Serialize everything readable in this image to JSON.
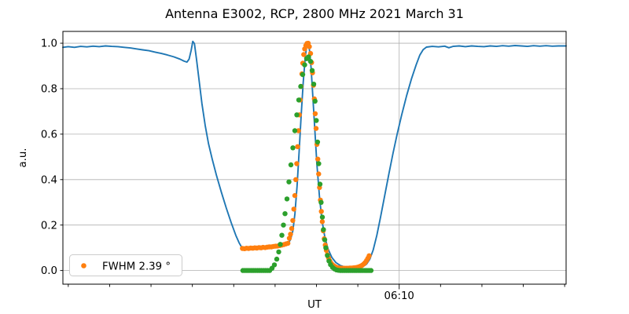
{
  "title": "Antenna E3002, RCP, 2800 MHz 2021 March 31",
  "colors": {
    "line": "#1f77b4",
    "scan_dots": "#ff7f0e",
    "fit_dots": "#2ca02c",
    "grid": "#b0b0b0",
    "axis": "#000000",
    "legend_border": "#cccccc",
    "background": "#ffffff"
  },
  "legend": {
    "label": "FWHM 2.39 °",
    "marker_color": "#ff7f0e"
  },
  "chart_data": {
    "type": "line",
    "title": "Antenna E3002, RCP, 2800 MHz 2021 March 31",
    "xlabel": "UT",
    "ylabel": "a.u.",
    "x_unit": "minutes since 00:00 UT",
    "xlim_minutes": [
      288.7,
      410.35
    ],
    "ylim": [
      -0.06,
      1.052
    ],
    "x_ticks_minutes": [
      290,
      300,
      310,
      320,
      330,
      340,
      350,
      360,
      370,
      380,
      390,
      400,
      410
    ],
    "x_major_tick": {
      "minutes": 370,
      "label": "06:10"
    },
    "y_ticks": [
      0.0,
      0.2,
      0.4,
      0.6,
      0.8,
      1.0
    ],
    "grid": {
      "horizontal": "at every y tick",
      "vertical": "only at labeled x tick 06:10"
    },
    "legend": {
      "label": "FWHM 2.39 °",
      "location": "lower left"
    },
    "series": [
      {
        "name": "signal-line",
        "type": "line",
        "color": "#1f77b4",
        "points": [
          [
            288.7,
            0.982
          ],
          [
            290.0,
            0.985
          ],
          [
            291.5,
            0.982
          ],
          [
            293.0,
            0.986
          ],
          [
            294.5,
            0.984
          ],
          [
            296.0,
            0.987
          ],
          [
            297.5,
            0.985
          ],
          [
            299.0,
            0.988
          ],
          [
            300.5,
            0.986
          ],
          [
            302.0,
            0.985
          ],
          [
            303.5,
            0.982
          ],
          [
            305.0,
            0.979
          ],
          [
            306.5,
            0.975
          ],
          [
            308.0,
            0.971
          ],
          [
            309.5,
            0.967
          ],
          [
            311.0,
            0.961
          ],
          [
            312.5,
            0.955
          ],
          [
            314.0,
            0.948
          ],
          [
            315.5,
            0.94
          ],
          [
            317.0,
            0.93
          ],
          [
            318.0,
            0.921
          ],
          [
            318.7,
            0.917
          ],
          [
            319.2,
            0.93
          ],
          [
            319.7,
            0.968
          ],
          [
            320.1,
            1.008
          ],
          [
            320.5,
            0.998
          ],
          [
            321.0,
            0.93
          ],
          [
            321.6,
            0.84
          ],
          [
            322.3,
            0.735
          ],
          [
            323.1,
            0.638
          ],
          [
            323.9,
            0.558
          ],
          [
            324.8,
            0.49
          ],
          [
            325.8,
            0.42
          ],
          [
            327.0,
            0.345
          ],
          [
            328.2,
            0.275
          ],
          [
            329.4,
            0.21
          ],
          [
            330.5,
            0.155
          ],
          [
            331.3,
            0.122
          ],
          [
            332.0,
            0.1
          ],
          [
            333.0,
            0.095
          ],
          [
            334.5,
            0.097
          ],
          [
            336.0,
            0.099
          ],
          [
            337.5,
            0.1
          ],
          [
            339.0,
            0.102
          ],
          [
            340.5,
            0.106
          ],
          [
            342.0,
            0.111
          ],
          [
            343.0,
            0.118
          ],
          [
            343.7,
            0.135
          ],
          [
            344.3,
            0.175
          ],
          [
            344.8,
            0.25
          ],
          [
            345.3,
            0.37
          ],
          [
            345.8,
            0.52
          ],
          [
            346.3,
            0.68
          ],
          [
            346.8,
            0.83
          ],
          [
            347.3,
            0.94
          ],
          [
            347.7,
            0.995
          ],
          [
            348.0,
            1.0
          ],
          [
            348.3,
            0.97
          ],
          [
            348.7,
            0.89
          ],
          [
            349.1,
            0.77
          ],
          [
            349.6,
            0.62
          ],
          [
            350.1,
            0.47
          ],
          [
            350.7,
            0.33
          ],
          [
            351.3,
            0.225
          ],
          [
            352.0,
            0.15
          ],
          [
            352.8,
            0.095
          ],
          [
            353.7,
            0.058
          ],
          [
            354.7,
            0.035
          ],
          [
            355.8,
            0.022
          ],
          [
            357.0,
            0.015
          ],
          [
            358.5,
            0.012
          ],
          [
            360.0,
            0.013
          ],
          [
            361.2,
            0.017
          ],
          [
            362.1,
            0.028
          ],
          [
            362.9,
            0.05
          ],
          [
            363.7,
            0.09
          ],
          [
            364.6,
            0.155
          ],
          [
            365.5,
            0.235
          ],
          [
            366.5,
            0.33
          ],
          [
            367.5,
            0.425
          ],
          [
            368.5,
            0.515
          ],
          [
            369.5,
            0.6
          ],
          [
            370.6,
            0.685
          ],
          [
            371.8,
            0.77
          ],
          [
            373.0,
            0.845
          ],
          [
            374.1,
            0.905
          ],
          [
            375.0,
            0.948
          ],
          [
            375.8,
            0.972
          ],
          [
            376.6,
            0.983
          ],
          [
            378.0,
            0.986
          ],
          [
            379.5,
            0.984
          ],
          [
            381.0,
            0.987
          ],
          [
            382.0,
            0.98
          ],
          [
            383.0,
            0.986
          ],
          [
            384.5,
            0.988
          ],
          [
            386.0,
            0.985
          ],
          [
            387.5,
            0.988
          ],
          [
            389.0,
            0.986
          ],
          [
            390.5,
            0.985
          ],
          [
            392.0,
            0.988
          ],
          [
            393.5,
            0.986
          ],
          [
            395.0,
            0.989
          ],
          [
            396.5,
            0.987
          ],
          [
            398.0,
            0.99
          ],
          [
            399.5,
            0.988
          ],
          [
            401.0,
            0.986
          ],
          [
            402.5,
            0.989
          ],
          [
            404.0,
            0.987
          ],
          [
            405.5,
            0.989
          ],
          [
            407.0,
            0.987
          ],
          [
            408.5,
            0.988
          ],
          [
            410.35,
            0.988
          ]
        ]
      },
      {
        "name": "scan-dots",
        "type": "scatter",
        "color": "#ff7f0e",
        "legend_label": "FWHM 2.39 °",
        "points": [
          [
            332.1,
            0.097
          ],
          [
            332.6,
            0.096
          ],
          [
            333.1,
            0.098
          ],
          [
            333.6,
            0.097
          ],
          [
            334.1,
            0.099
          ],
          [
            334.6,
            0.098
          ],
          [
            335.1,
            0.1
          ],
          [
            335.6,
            0.099
          ],
          [
            336.1,
            0.101
          ],
          [
            336.6,
            0.1
          ],
          [
            337.1,
            0.102
          ],
          [
            337.6,
            0.101
          ],
          [
            338.1,
            0.103
          ],
          [
            338.6,
            0.104
          ],
          [
            339.1,
            0.104
          ],
          [
            339.6,
            0.106
          ],
          [
            340.1,
            0.107
          ],
          [
            340.6,
            0.108
          ],
          [
            341.1,
            0.11
          ],
          [
            341.6,
            0.112
          ],
          [
            342.1,
            0.114
          ],
          [
            342.6,
            0.117
          ],
          [
            343.1,
            0.12
          ],
          [
            343.45,
            0.142
          ],
          [
            343.73,
            0.16
          ],
          [
            344.02,
            0.185
          ],
          [
            344.28,
            0.22
          ],
          [
            344.53,
            0.27
          ],
          [
            344.78,
            0.33
          ],
          [
            345.0,
            0.4
          ],
          [
            345.23,
            0.47
          ],
          [
            345.44,
            0.545
          ],
          [
            345.65,
            0.615
          ],
          [
            345.86,
            0.685
          ],
          [
            346.07,
            0.75
          ],
          [
            346.28,
            0.81
          ],
          [
            346.49,
            0.865
          ],
          [
            346.7,
            0.912
          ],
          [
            346.92,
            0.95
          ],
          [
            347.15,
            0.975
          ],
          [
            347.44,
            0.99
          ],
          [
            347.72,
            0.999
          ],
          [
            348.01,
            1.0
          ],
          [
            348.29,
            0.985
          ],
          [
            348.58,
            0.955
          ],
          [
            348.82,
            0.915
          ],
          [
            349.05,
            0.87
          ],
          [
            349.28,
            0.815
          ],
          [
            349.49,
            0.755
          ],
          [
            349.7,
            0.69
          ],
          [
            349.91,
            0.625
          ],
          [
            350.12,
            0.555
          ],
          [
            350.33,
            0.49
          ],
          [
            350.54,
            0.425
          ],
          [
            350.75,
            0.365
          ],
          [
            350.96,
            0.31
          ],
          [
            351.18,
            0.26
          ],
          [
            351.41,
            0.215
          ],
          [
            351.64,
            0.175
          ],
          [
            351.89,
            0.14
          ],
          [
            352.13,
            0.112
          ],
          [
            352.38,
            0.089
          ],
          [
            352.65,
            0.07
          ],
          [
            352.93,
            0.055
          ],
          [
            353.22,
            0.043
          ],
          [
            353.52,
            0.033
          ],
          [
            353.84,
            0.026
          ],
          [
            354.17,
            0.021
          ],
          [
            354.51,
            0.017
          ],
          [
            354.85,
            0.014
          ],
          [
            355.23,
            0.012
          ],
          [
            355.61,
            0.011
          ],
          [
            356.03,
            0.01
          ],
          [
            356.45,
            0.01
          ],
          [
            356.87,
            0.01
          ],
          [
            357.29,
            0.01
          ],
          [
            357.7,
            0.01
          ],
          [
            358.12,
            0.011
          ],
          [
            358.54,
            0.011
          ],
          [
            358.96,
            0.012
          ],
          [
            359.38,
            0.013
          ],
          [
            359.8,
            0.014
          ],
          [
            360.21,
            0.016
          ],
          [
            360.63,
            0.019
          ],
          [
            361.03,
            0.023
          ],
          [
            361.41,
            0.028
          ],
          [
            361.77,
            0.035
          ],
          [
            362.11,
            0.044
          ],
          [
            362.44,
            0.054
          ],
          [
            362.74,
            0.065
          ]
        ]
      },
      {
        "name": "fit-dots",
        "type": "scatter",
        "color": "#2ca02c",
        "points": [
          [
            332.2,
            0.0
          ],
          [
            332.7,
            0.0
          ],
          [
            333.2,
            0.0
          ],
          [
            333.7,
            0.0
          ],
          [
            334.2,
            0.0
          ],
          [
            334.7,
            0.0
          ],
          [
            335.2,
            0.0
          ],
          [
            335.7,
            0.0
          ],
          [
            336.2,
            0.0
          ],
          [
            336.7,
            0.0
          ],
          [
            337.2,
            0.0
          ],
          [
            337.7,
            0.0
          ],
          [
            338.2,
            0.0
          ],
          [
            338.7,
            0.0
          ],
          [
            339.26,
            0.01
          ],
          [
            339.83,
            0.025
          ],
          [
            340.4,
            0.05
          ],
          [
            340.88,
            0.082
          ],
          [
            341.26,
            0.115
          ],
          [
            341.64,
            0.155
          ],
          [
            342.02,
            0.2
          ],
          [
            342.4,
            0.25
          ],
          [
            342.87,
            0.315
          ],
          [
            343.35,
            0.39
          ],
          [
            343.82,
            0.465
          ],
          [
            344.3,
            0.54
          ],
          [
            344.77,
            0.615
          ],
          [
            345.25,
            0.685
          ],
          [
            345.72,
            0.75
          ],
          [
            346.2,
            0.81
          ],
          [
            346.67,
            0.862
          ],
          [
            347.15,
            0.905
          ],
          [
            347.62,
            0.932
          ],
          [
            348.1,
            0.94
          ],
          [
            348.57,
            0.92
          ],
          [
            348.95,
            0.88
          ],
          [
            349.33,
            0.82
          ],
          [
            349.65,
            0.745
          ],
          [
            349.96,
            0.66
          ],
          [
            350.26,
            0.565
          ],
          [
            350.56,
            0.47
          ],
          [
            350.85,
            0.38
          ],
          [
            351.13,
            0.3
          ],
          [
            351.42,
            0.235
          ],
          [
            351.7,
            0.18
          ],
          [
            351.99,
            0.135
          ],
          [
            352.27,
            0.1
          ],
          [
            352.65,
            0.066
          ],
          [
            353.03,
            0.042
          ],
          [
            353.41,
            0.026
          ],
          [
            353.89,
            0.014
          ],
          [
            354.37,
            0.007
          ],
          [
            354.84,
            0.003
          ],
          [
            355.32,
            0.001
          ],
          [
            355.8,
            0.0
          ],
          [
            356.29,
            0.0
          ],
          [
            356.78,
            0.0
          ],
          [
            357.28,
            0.0
          ],
          [
            357.77,
            0.0
          ],
          [
            358.26,
            0.0
          ],
          [
            358.76,
            0.0
          ],
          [
            359.25,
            0.0
          ],
          [
            359.74,
            0.0
          ],
          [
            360.24,
            0.0
          ],
          [
            360.73,
            0.0
          ],
          [
            361.22,
            0.0
          ],
          [
            361.72,
            0.0
          ],
          [
            362.21,
            0.0
          ],
          [
            362.7,
            0.0
          ],
          [
            363.2,
            0.0
          ]
        ]
      }
    ]
  }
}
